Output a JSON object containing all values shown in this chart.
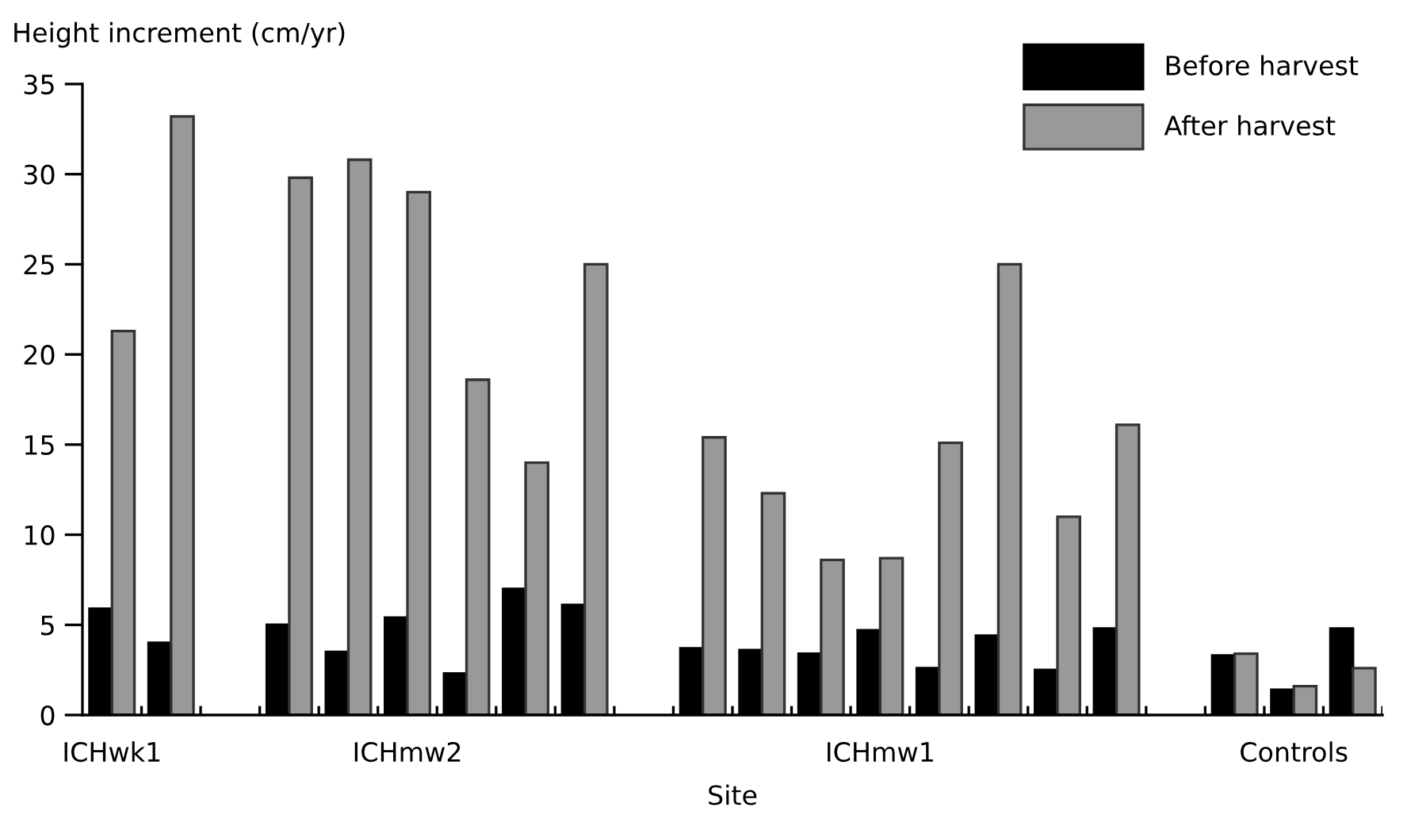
{
  "chart_data": {
    "type": "bar",
    "xlabel": "Site",
    "ylabel": "Height increment (cm/yr)",
    "categories": [
      "ICHwk1",
      null,
      null,
      null,
      null,
      "ICHmw2",
      null,
      null,
      null,
      null,
      null,
      null,
      null,
      "ICHmw1",
      null,
      null,
      null,
      null,
      null,
      null,
      "Controls",
      null
    ],
    "series": [
      {
        "name": "Before harvest",
        "color": "#000000",
        "values": [
          5.9,
          4.0,
          null,
          5.0,
          3.5,
          5.4,
          2.3,
          7.0,
          6.1,
          null,
          3.7,
          3.6,
          3.4,
          4.7,
          2.6,
          4.4,
          2.5,
          4.8,
          null,
          3.3,
          1.4,
          4.8
        ]
      },
      {
        "name": "After harvest",
        "color": "#999999",
        "values": [
          21.3,
          33.2,
          null,
          29.8,
          30.8,
          29.0,
          18.6,
          14.0,
          25.0,
          null,
          15.4,
          12.3,
          8.6,
          8.7,
          15.1,
          25.0,
          11.0,
          16.1,
          null,
          3.4,
          1.6,
          2.6
        ]
      }
    ],
    "ylim": [
      0,
      35
    ],
    "yticks": [
      0,
      5,
      10,
      15,
      20,
      25,
      30,
      35
    ],
    "grid": false,
    "legend": "top right"
  }
}
